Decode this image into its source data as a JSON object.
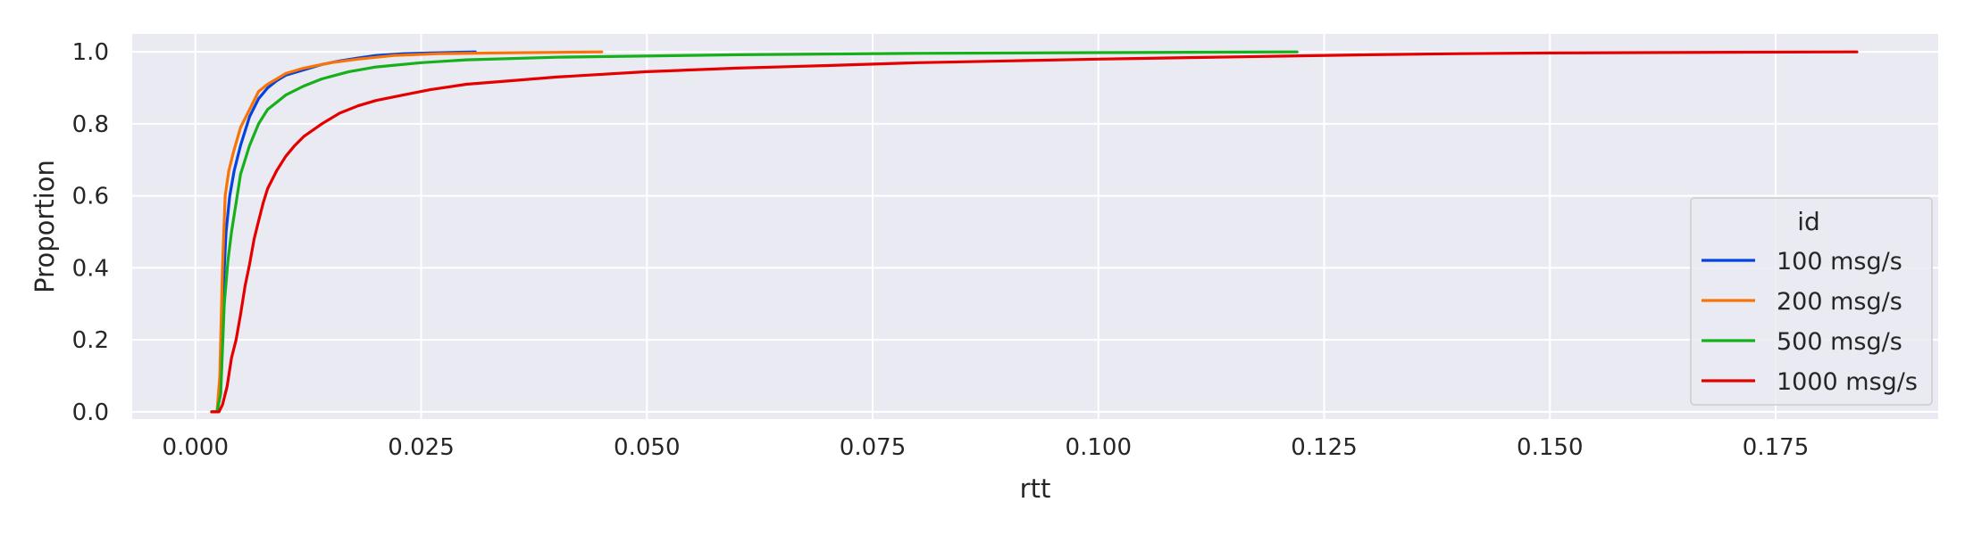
{
  "chart_data": {
    "type": "line",
    "xlabel": "rtt",
    "ylabel": "Proportion",
    "xlim": [
      -0.007,
      0.193
    ],
    "ylim": [
      -0.02,
      1.05
    ],
    "x_ticks": [
      "0.000",
      "0.025",
      "0.050",
      "0.075",
      "0.100",
      "0.125",
      "0.150",
      "0.175"
    ],
    "y_ticks": [
      "0.0",
      "0.2",
      "0.4",
      "0.6",
      "0.8",
      "1.0"
    ],
    "grid": true,
    "legend": {
      "title": "id",
      "placement": "right"
    },
    "series": [
      {
        "name": "100 msg/s",
        "color": "#0343df",
        "points": [
          [
            0.0018,
            0.0
          ],
          [
            0.0024,
            0.0
          ],
          [
            0.0027,
            0.05
          ],
          [
            0.003,
            0.3
          ],
          [
            0.0034,
            0.5
          ],
          [
            0.0038,
            0.6
          ],
          [
            0.0043,
            0.67
          ],
          [
            0.005,
            0.74
          ],
          [
            0.006,
            0.82
          ],
          [
            0.007,
            0.87
          ],
          [
            0.008,
            0.9
          ],
          [
            0.009,
            0.92
          ],
          [
            0.01,
            0.935
          ],
          [
            0.012,
            0.95
          ],
          [
            0.014,
            0.965
          ],
          [
            0.016,
            0.975
          ],
          [
            0.018,
            0.983
          ],
          [
            0.02,
            0.99
          ],
          [
            0.023,
            0.995
          ],
          [
            0.026,
            0.997
          ],
          [
            0.031,
            1.0
          ]
        ]
      },
      {
        "name": "200 msg/s",
        "color": "#f97306",
        "points": [
          [
            0.0018,
            0.0
          ],
          [
            0.0024,
            0.0
          ],
          [
            0.0027,
            0.1
          ],
          [
            0.003,
            0.4
          ],
          [
            0.0033,
            0.6
          ],
          [
            0.0037,
            0.67
          ],
          [
            0.0042,
            0.72
          ],
          [
            0.005,
            0.79
          ],
          [
            0.006,
            0.84
          ],
          [
            0.007,
            0.89
          ],
          [
            0.008,
            0.91
          ],
          [
            0.009,
            0.925
          ],
          [
            0.01,
            0.94
          ],
          [
            0.012,
            0.955
          ],
          [
            0.015,
            0.97
          ],
          [
            0.018,
            0.98
          ],
          [
            0.022,
            0.99
          ],
          [
            0.027,
            0.995
          ],
          [
            0.033,
            0.997
          ],
          [
            0.045,
            1.0
          ]
        ]
      },
      {
        "name": "500 msg/s",
        "color": "#15b01a",
        "points": [
          [
            0.0018,
            0.0
          ],
          [
            0.0024,
            0.0
          ],
          [
            0.0028,
            0.05
          ],
          [
            0.0032,
            0.3
          ],
          [
            0.0036,
            0.42
          ],
          [
            0.004,
            0.5
          ],
          [
            0.0045,
            0.58
          ],
          [
            0.005,
            0.66
          ],
          [
            0.006,
            0.74
          ],
          [
            0.007,
            0.8
          ],
          [
            0.008,
            0.84
          ],
          [
            0.009,
            0.86
          ],
          [
            0.01,
            0.88
          ],
          [
            0.012,
            0.905
          ],
          [
            0.014,
            0.925
          ],
          [
            0.017,
            0.945
          ],
          [
            0.02,
            0.958
          ],
          [
            0.025,
            0.97
          ],
          [
            0.03,
            0.978
          ],
          [
            0.04,
            0.985
          ],
          [
            0.06,
            0.992
          ],
          [
            0.08,
            0.996
          ],
          [
            0.1,
            0.998
          ],
          [
            0.122,
            1.0
          ]
        ]
      },
      {
        "name": "1000 msg/s",
        "color": "#e50000",
        "points": [
          [
            0.0018,
            0.0
          ],
          [
            0.0026,
            0.0
          ],
          [
            0.003,
            0.02
          ],
          [
            0.0035,
            0.07
          ],
          [
            0.004,
            0.15
          ],
          [
            0.0045,
            0.2
          ],
          [
            0.005,
            0.27
          ],
          [
            0.0055,
            0.35
          ],
          [
            0.006,
            0.41
          ],
          [
            0.0065,
            0.48
          ],
          [
            0.007,
            0.53
          ],
          [
            0.0075,
            0.58
          ],
          [
            0.008,
            0.62
          ],
          [
            0.009,
            0.67
          ],
          [
            0.01,
            0.71
          ],
          [
            0.011,
            0.74
          ],
          [
            0.012,
            0.765
          ],
          [
            0.014,
            0.8
          ],
          [
            0.016,
            0.83
          ],
          [
            0.018,
            0.85
          ],
          [
            0.02,
            0.865
          ],
          [
            0.023,
            0.88
          ],
          [
            0.026,
            0.895
          ],
          [
            0.03,
            0.91
          ],
          [
            0.035,
            0.92
          ],
          [
            0.04,
            0.93
          ],
          [
            0.05,
            0.945
          ],
          [
            0.06,
            0.955
          ],
          [
            0.07,
            0.962
          ],
          [
            0.08,
            0.97
          ],
          [
            0.09,
            0.975
          ],
          [
            0.1,
            0.98
          ],
          [
            0.11,
            0.984
          ],
          [
            0.12,
            0.988
          ],
          [
            0.13,
            0.992
          ],
          [
            0.14,
            0.995
          ],
          [
            0.15,
            0.997
          ],
          [
            0.16,
            0.998
          ],
          [
            0.17,
            0.999
          ],
          [
            0.184,
            1.0
          ]
        ]
      }
    ]
  }
}
